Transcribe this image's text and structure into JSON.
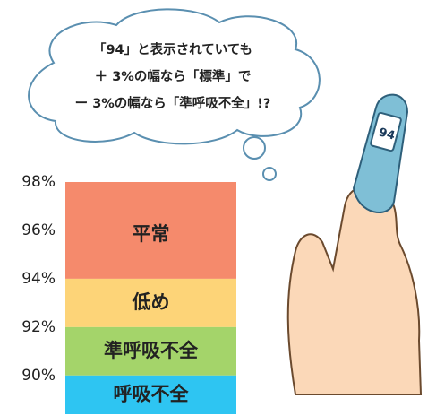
{
  "chart_data": {
    "type": "bands",
    "annotation_lines": [
      "「94」と表示されていても",
      "＋ 3%の幅なら「標準」で",
      "ー 3%の幅なら「準呼吸不全」!?"
    ],
    "device_reading": "94",
    "bands": [
      {
        "name": "平常",
        "color": "#f58a6c",
        "range": [
          94,
          98
        ]
      },
      {
        "name": "低め",
        "color": "#fdd478",
        "range": [
          92,
          94
        ]
      },
      {
        "name": "準呼吸不全",
        "color": "#a4d46a",
        "range": [
          90,
          92
        ]
      },
      {
        "name": "呼吸不全",
        "color": "#2ec5f2",
        "range": [
          88.4,
          90
        ]
      }
    ],
    "ylim": [
      88.4,
      98
    ],
    "yticks": [
      {
        "value": 90,
        "label": "90%"
      },
      {
        "value": 92,
        "label": "92%"
      },
      {
        "value": 94,
        "label": "94%"
      },
      {
        "value": 96,
        "label": "96%"
      },
      {
        "value": 98,
        "label": "98%"
      }
    ]
  }
}
